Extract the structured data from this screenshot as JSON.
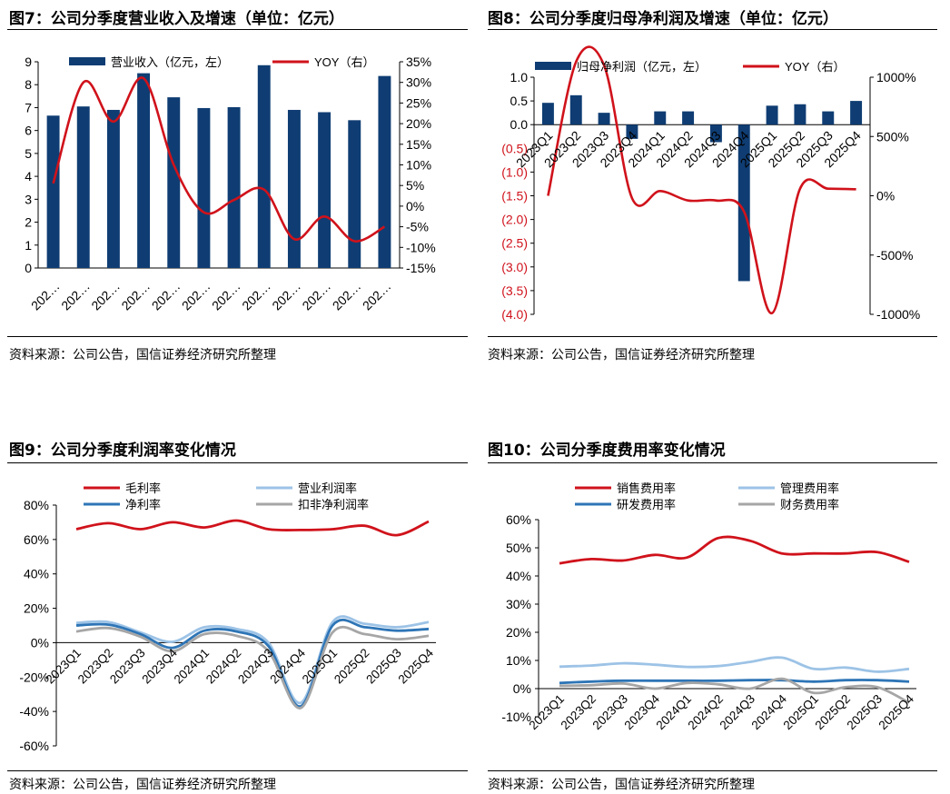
{
  "panels": [
    {
      "title": "图7：公司分季度营业收入及增速（单位：亿元）",
      "source": "资料来源：公司公告，国信证券经济研究所整理"
    },
    {
      "title": "图8：公司分季度归母净利润及增速（单位：亿元）",
      "source": "资料来源：公司公告，国信证券经济研究所整理"
    },
    {
      "title": "图9：公司分季度利润率变化情况",
      "source": "资料来源：公司公告，国信证券经济研究所整理"
    },
    {
      "title": "图10：公司分季度费用率变化情况",
      "source": "资料来源：公司公告，国信证券经济研究所整理"
    }
  ],
  "chart_data": [
    {
      "type": "bar",
      "title": "公司分季度营业收入及增速",
      "categories": [
        "202…",
        "202…",
        "202…",
        "202…",
        "202…",
        "202…",
        "202…",
        "202…",
        "202…",
        "202…",
        "202…",
        "202…"
      ],
      "ylim": [
        0,
        9
      ],
      "y_ticks": [
        "0",
        "1",
        "2",
        "3",
        "4",
        "5",
        "6",
        "7",
        "8",
        "9"
      ],
      "y2lim": [
        -15,
        35
      ],
      "y2_ticks": [
        "-15%",
        "-10%",
        "-5%",
        "0%",
        "5%",
        "10%",
        "15%",
        "20%",
        "25%",
        "30%",
        "35%"
      ],
      "series": [
        {
          "name": "营业收入（亿元，左）",
          "kind": "bar",
          "axis": "left",
          "color": "#0f3d73",
          "values": [
            6.65,
            7.05,
            6.9,
            8.5,
            7.45,
            6.98,
            7.02,
            8.85,
            6.9,
            6.8,
            6.45,
            8.38
          ]
        },
        {
          "name": "YOY（右）",
          "kind": "line",
          "axis": "right",
          "color": "#d0121b",
          "values": [
            5.5,
            30.0,
            20.5,
            31.0,
            10.0,
            -1.5,
            1.5,
            4.0,
            -8.0,
            -2.5,
            -8.5,
            -5.0
          ]
        }
      ]
    },
    {
      "type": "bar",
      "title": "公司分季度归母净利润及增速",
      "categories": [
        "2023Q1",
        "2023Q2",
        "2023Q3",
        "2023Q4",
        "2024Q1",
        "2024Q2",
        "2024Q3",
        "2024Q4",
        "2025Q1",
        "2025Q2",
        "2025Q3",
        "2025Q4"
      ],
      "ylim": [
        -4.0,
        1.0
      ],
      "y_ticks": [
        "(4.0)",
        "(3.5)",
        "(3.0)",
        "(2.5)",
        "(2.0)",
        "(1.5)",
        "(1.0)",
        "(0.5)",
        "0.0",
        "0.5",
        "1.0"
      ],
      "y2lim": [
        -1000,
        1000
      ],
      "y2_ticks": [
        "-1000%",
        "-500%",
        "0%",
        "500%",
        "1000%"
      ],
      "series": [
        {
          "name": "归母净利润（亿元，左）",
          "kind": "bar",
          "axis": "left",
          "color": "#0f3d73",
          "values": [
            0.46,
            0.62,
            0.25,
            -0.3,
            0.28,
            0.28,
            -0.37,
            -3.3,
            0.4,
            0.43,
            0.28,
            0.5
          ]
        },
        {
          "name": "YOY（右）",
          "kind": "line",
          "axis": "right",
          "color": "#d0121b",
          "values": [
            0,
            1130,
            1100,
            -20,
            40,
            -40,
            -40,
            -135,
            -990,
            60,
            60,
            55
          ]
        }
      ]
    },
    {
      "type": "line",
      "title": "公司分季度利润率变化情况",
      "categories": [
        "2023Q1",
        "2023Q2",
        "2023Q3",
        "2023Q4",
        "2024Q1",
        "2024Q2",
        "2024Q3",
        "2024Q4",
        "2025Q1",
        "2025Q2",
        "2025Q3",
        "2025Q4"
      ],
      "ylim": [
        -60,
        80
      ],
      "y_ticks": [
        "-60%",
        "-40%",
        "-20%",
        "0%",
        "20%",
        "40%",
        "60%",
        "80%"
      ],
      "series": [
        {
          "name": "毛利率",
          "color": "#d0121b",
          "values": [
            66,
            69.5,
            66,
            70,
            67,
            71,
            66,
            65.5,
            66,
            68,
            62.5,
            70.5
          ]
        },
        {
          "name": "营业利润率",
          "color": "#9dc3e6",
          "values": [
            11.5,
            12,
            6,
            0.5,
            9,
            8,
            0,
            -35,
            12,
            11,
            9,
            12
          ]
        },
        {
          "name": "净利率",
          "color": "#2e75b6",
          "values": [
            10,
            10.5,
            5,
            -3,
            7,
            6.5,
            -2,
            -37,
            10,
            9,
            7,
            8
          ]
        },
        {
          "name": "扣非净利润率",
          "color": "#a6a6a6",
          "values": [
            6.5,
            8.5,
            3.5,
            -5,
            5,
            4,
            -5,
            -38,
            6,
            5,
            2,
            4
          ]
        }
      ]
    },
    {
      "type": "line",
      "title": "公司分季度费用率变化情况",
      "categories": [
        "2023Q1",
        "2023Q2",
        "2023Q3",
        "2023Q4",
        "2024Q1",
        "2024Q2",
        "2024Q3",
        "2024Q4",
        "2025Q1",
        "2025Q2",
        "2025Q3",
        "2025Q4"
      ],
      "ylim": [
        -10,
        60
      ],
      "y_ticks": [
        "-10%",
        "0%",
        "10%",
        "20%",
        "30%",
        "40%",
        "50%",
        "60%"
      ],
      "series": [
        {
          "name": "销售费用率",
          "color": "#d0121b",
          "values": [
            44.5,
            46,
            45.5,
            47.5,
            46.5,
            53.5,
            52.5,
            48,
            48,
            48,
            48.5,
            45
          ]
        },
        {
          "name": "管理费用率",
          "color": "#9dc3e6",
          "values": [
            7.8,
            8.2,
            9,
            8.5,
            7.7,
            8,
            9.5,
            11,
            7,
            7.5,
            6,
            7
          ]
        },
        {
          "name": "研发费用率",
          "color": "#2e75b6",
          "values": [
            2,
            2.5,
            2.8,
            2.8,
            2.8,
            2.8,
            3,
            3,
            2.5,
            3,
            3,
            2.5
          ]
        },
        {
          "name": "财务费用率",
          "color": "#a6a6a6",
          "values": [
            1,
            1.2,
            1.8,
            0,
            2,
            1.5,
            0,
            3.5,
            -1.5,
            0.5,
            0.5,
            -5
          ]
        }
      ]
    }
  ]
}
